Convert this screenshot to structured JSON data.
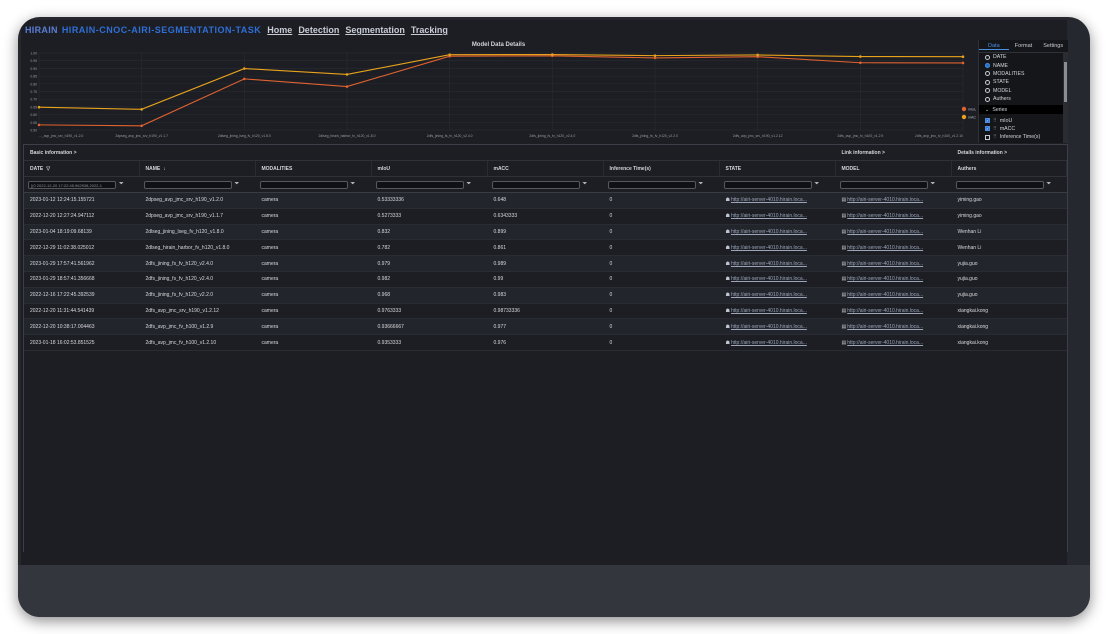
{
  "app": {
    "logo": "HIRAIN",
    "title": "HIRAIN-CNOC-AIRI-SEGMENTATION-TASK",
    "nav": [
      "Home",
      "Detection",
      "Segmentation",
      "Tracking"
    ]
  },
  "chart_data": {
    "type": "line",
    "title": "Model Data Details",
    "categories": [
      "..._avp_jmc_srv_h190_v1.2.0",
      "2dpseg_avp_jmc_srv_h190_v1.1.7",
      "2dlseg_jining_lseg_fv_h120_v1.8.0",
      "2dlseg_hirain_harbor_fv_h120_v1.8.0",
      "2dfs_jining_fs_fv_h120_v2.4.0",
      "2dfs_jining_fs_fv_h120_v2.4.0",
      "2dfs_jining_fs_fv_h120_v2.2.0",
      "2dfs_avp_jmc_srv_h190_v1.2.12",
      "2dfs_avp_jmc_fv_h100_v1.2.9",
      "2dfs_avp_jmc_fv_h100_v1.2.10"
    ],
    "y_ticks": [
      "1.00",
      "0.95",
      "0.90",
      "0.85",
      "0.80",
      "0.75",
      "0.70",
      "0.65",
      "0.60",
      "0.55",
      "0.50"
    ],
    "ylim": [
      0.5,
      1.0
    ],
    "series": [
      {
        "name": "mIoU",
        "color": "#e0622f",
        "values": [
          0.5333,
          0.5273,
          0.832,
          0.782,
          0.979,
          0.982,
          0.968,
          0.9763,
          0.9367,
          0.9353
        ]
      },
      {
        "name": "mACC",
        "color": "#e8a21c",
        "values": [
          0.648,
          0.6343,
          0.899,
          0.861,
          0.989,
          0.99,
          0.983,
          0.9873,
          0.977,
          0.976
        ]
      }
    ]
  },
  "panel": {
    "tabs": [
      "Data",
      "Format",
      "Settings"
    ],
    "active_tab": "Data",
    "xaxis_options": [
      "DATE",
      "NAME",
      "MODALITIES",
      "STATE",
      "MODEL",
      "Authers"
    ],
    "selected_xaxis": "NAME",
    "series_header": "Series",
    "series_items": [
      {
        "label": "mIoU",
        "checked": true
      },
      {
        "label": "mACC",
        "checked": true
      },
      {
        "label": "Inference Time(s)",
        "checked": false
      }
    ]
  },
  "table": {
    "groups": [
      "Basic information >",
      "Link information >",
      "Details information >"
    ],
    "columns": [
      "DATE",
      "NAME",
      "MODALITIES",
      "mIoU",
      "mACC",
      "Inference Time(s)",
      "STATE",
      "MODEL",
      "Authers"
    ],
    "date_filter_value": "[(0 2022-12-20 17:22:45.962938,2022-1",
    "rows": [
      [
        "2023-01-12 12:24:15.155721",
        "2dpseg_avp_jmc_srv_h190_v1.2.0",
        "camera",
        "0.53333336",
        "0.648",
        "0",
        "http://airi-server-4010.hirain.loca...",
        "http://airi-server-4010.hirain.loca...",
        "yiming.gao"
      ],
      [
        "2022-12-20 12:27:24.947112",
        "2dpseg_avp_jmc_srv_h190_v1.1.7",
        "camera",
        "0.5273333",
        "0.6343333",
        "0",
        "http://airi-server-4010.hirain.loca...",
        "http://airi-server-4010.hirain.loca...",
        "yiming.gao"
      ],
      [
        "2023-01-04 18:19:09.68139",
        "2dlseg_jining_lseg_fv_h120_v1.8.0",
        "camera",
        "0.832",
        "0.899",
        "0",
        "http://airi-server-4010.hirain.loca...",
        "http://airi-server-4010.hirain.loca...",
        "Wenhan Li"
      ],
      [
        "2022-12-29 11:02:38.025012",
        "2dlseg_hirain_harbor_fv_h120_v1.8.0",
        "camera",
        "0.782",
        "0.861",
        "0",
        "http://airi-server-4010.hirain.loca...",
        "http://airi-server-4010.hirain.loca...",
        "Wenhan Li"
      ],
      [
        "2023-01-29 17:57:41.561962",
        "2dfs_jining_fs_fv_h120_v2.4.0",
        "camera",
        "0.979",
        "0.989",
        "0",
        "http://airi-server-4010.hirain.loca...",
        "http://airi-server-4010.hirain.loca...",
        "yujia.guo"
      ],
      [
        "2023-01-29 18:57:41.356668",
        "2dfs_jining_fs_fv_h120_v2.4.0",
        "camera",
        "0.982",
        "0.99",
        "0",
        "http://airi-server-4010.hirain.loca...",
        "http://airi-server-4010.hirain.loca...",
        "yujia.guo"
      ],
      [
        "2022-12-16 17:22:45.392539",
        "2dfs_jining_fs_fv_h120_v2.2.0",
        "camera",
        "0.968",
        "0.983",
        "0",
        "http://airi-server-4010.hirain.loca...",
        "http://airi-server-4010.hirain.loca...",
        "yujia.guo"
      ],
      [
        "2022-12-20 11:31:44.541439",
        "2dfs_avp_jmc_srv_h190_v1.2.12",
        "camera",
        "0.9763333",
        "0.98733336",
        "0",
        "http://airi-server-4010.hirain.loca...",
        "http://airi-server-4010.hirain.loca...",
        "xiangkai.kong"
      ],
      [
        "2022-12-20 10:38:17.004463",
        "2dfs_avp_jmc_fv_h100_v1.2.9",
        "camera",
        "0.93666667",
        "0.977",
        "0",
        "http://airi-server-4010.hirain.loca...",
        "http://airi-server-4010.hirain.loca...",
        "xiangkai.kong"
      ],
      [
        "2023-01-18 16:02:53.851525",
        "2dfs_avp_jmc_fv_h100_v1.2.10",
        "camera",
        "0.9353333",
        "0.976",
        "0",
        "http://airi-server-4010.hirain.loca...",
        "http://airi-server-4010.hirain.loca...",
        "xiangkai.kong"
      ]
    ]
  }
}
